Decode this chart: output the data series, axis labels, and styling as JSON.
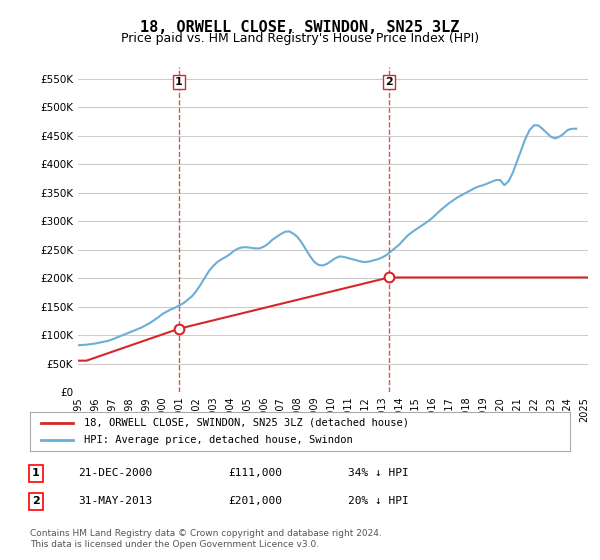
{
  "title": "18, ORWELL CLOSE, SWINDON, SN25 3LZ",
  "subtitle": "Price paid vs. HM Land Registry's House Price Index (HPI)",
  "title_fontsize": 11,
  "subtitle_fontsize": 9,
  "background_color": "#ffffff",
  "plot_bg_color": "#ffffff",
  "grid_color": "#cccccc",
  "hpi_color": "#6baed6",
  "price_color": "#d62728",
  "marker_color": "#d62728",
  "vline_color": "#d62728",
  "ylim": [
    0,
    570000
  ],
  "yticks": [
    0,
    50000,
    100000,
    150000,
    200000,
    250000,
    300000,
    350000,
    400000,
    450000,
    500000,
    550000
  ],
  "ytick_labels": [
    "£0",
    "£50K",
    "£100K",
    "£150K",
    "£200K",
    "£250K",
    "£300K",
    "£350K",
    "£400K",
    "£450K",
    "£500K",
    "£550K"
  ],
  "sale1_x": 2000.97,
  "sale1_y": 111000,
  "sale1_label": "1",
  "sale1_date": "21-DEC-2000",
  "sale1_price": "£111,000",
  "sale1_pct": "34% ↓ HPI",
  "sale2_x": 2013.41,
  "sale2_y": 201000,
  "sale2_label": "2",
  "sale2_date": "31-MAY-2013",
  "sale2_price": "£201,000",
  "sale2_pct": "20% ↓ HPI",
  "legend_line1": "18, ORWELL CLOSE, SWINDON, SN25 3LZ (detached house)",
  "legend_line2": "HPI: Average price, detached house, Swindon",
  "footnote": "Contains HM Land Registry data © Crown copyright and database right 2024.\nThis data is licensed under the Open Government Licence v3.0.",
  "hpi_data_x": [
    1995.0,
    1995.25,
    1995.5,
    1995.75,
    1996.0,
    1996.25,
    1996.5,
    1996.75,
    1997.0,
    1997.25,
    1997.5,
    1997.75,
    1998.0,
    1998.25,
    1998.5,
    1998.75,
    1999.0,
    1999.25,
    1999.5,
    1999.75,
    2000.0,
    2000.25,
    2000.5,
    2000.75,
    2001.0,
    2001.25,
    2001.5,
    2001.75,
    2002.0,
    2002.25,
    2002.5,
    2002.75,
    2003.0,
    2003.25,
    2003.5,
    2003.75,
    2004.0,
    2004.25,
    2004.5,
    2004.75,
    2005.0,
    2005.25,
    2005.5,
    2005.75,
    2006.0,
    2006.25,
    2006.5,
    2006.75,
    2007.0,
    2007.25,
    2007.5,
    2007.75,
    2008.0,
    2008.25,
    2008.5,
    2008.75,
    2009.0,
    2009.25,
    2009.5,
    2009.75,
    2010.0,
    2010.25,
    2010.5,
    2010.75,
    2011.0,
    2011.25,
    2011.5,
    2011.75,
    2012.0,
    2012.25,
    2012.5,
    2012.75,
    2013.0,
    2013.25,
    2013.5,
    2013.75,
    2014.0,
    2014.25,
    2014.5,
    2014.75,
    2015.0,
    2015.25,
    2015.5,
    2015.75,
    2016.0,
    2016.25,
    2016.5,
    2016.75,
    2017.0,
    2017.25,
    2017.5,
    2017.75,
    2018.0,
    2018.25,
    2018.5,
    2018.75,
    2019.0,
    2019.25,
    2019.5,
    2019.75,
    2020.0,
    2020.25,
    2020.5,
    2020.75,
    2021.0,
    2021.25,
    2021.5,
    2021.75,
    2022.0,
    2022.25,
    2022.5,
    2022.75,
    2023.0,
    2023.25,
    2023.5,
    2023.75,
    2024.0,
    2024.25,
    2024.5
  ],
  "hpi_data_y": [
    82000,
    82500,
    83000,
    84000,
    85000,
    86500,
    88000,
    89500,
    92000,
    95000,
    98000,
    101000,
    104000,
    107000,
    110000,
    113000,
    117000,
    121000,
    126000,
    131000,
    137000,
    141000,
    145000,
    148000,
    152000,
    156000,
    162000,
    168000,
    177000,
    188000,
    200000,
    212000,
    221000,
    228000,
    233000,
    237000,
    242000,
    248000,
    252000,
    254000,
    254000,
    253000,
    252000,
    252000,
    255000,
    260000,
    267000,
    272000,
    277000,
    281000,
    282000,
    278000,
    272000,
    262000,
    250000,
    238000,
    228000,
    223000,
    222000,
    225000,
    230000,
    235000,
    238000,
    237000,
    235000,
    233000,
    231000,
    229000,
    228000,
    229000,
    231000,
    233000,
    236000,
    240000,
    246000,
    252000,
    258000,
    266000,
    274000,
    280000,
    285000,
    290000,
    295000,
    300000,
    306000,
    313000,
    320000,
    326000,
    332000,
    337000,
    342000,
    346000,
    350000,
    354000,
    358000,
    361000,
    363000,
    366000,
    369000,
    372000,
    372000,
    363000,
    370000,
    385000,
    405000,
    425000,
    445000,
    460000,
    468000,
    468000,
    462000,
    455000,
    448000,
    445000,
    448000,
    453000,
    460000,
    462000,
    462000
  ],
  "price_data_x": [
    1995.5,
    2000.97,
    2013.41
  ],
  "price_data_y": [
    55000,
    111000,
    201000
  ],
  "xmin": 1995.0,
  "xmax": 2025.2
}
